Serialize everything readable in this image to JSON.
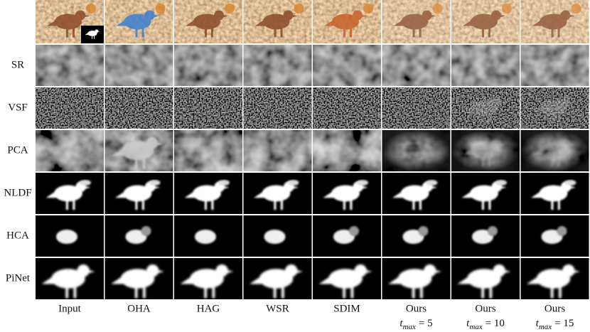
{
  "columns": [
    {
      "label": "Input"
    },
    {
      "label": "OHA"
    },
    {
      "label": "HAG"
    },
    {
      "label": "WSR"
    },
    {
      "label": "SDIM"
    },
    {
      "label": "Ours",
      "subtitle": {
        "var": "t",
        "sub": "max",
        "rest": "= 5"
      }
    },
    {
      "label": "Ours",
      "subtitle": {
        "var": "t",
        "sub": "max",
        "rest": "= 10"
      }
    },
    {
      "label": "Ours",
      "subtitle": {
        "var": "t",
        "sub": "max",
        "rest": "= 15"
      }
    }
  ],
  "rows": [
    "SR",
    "VSF",
    "PCA",
    "NLDF",
    "HCA",
    "PiNet"
  ]
}
